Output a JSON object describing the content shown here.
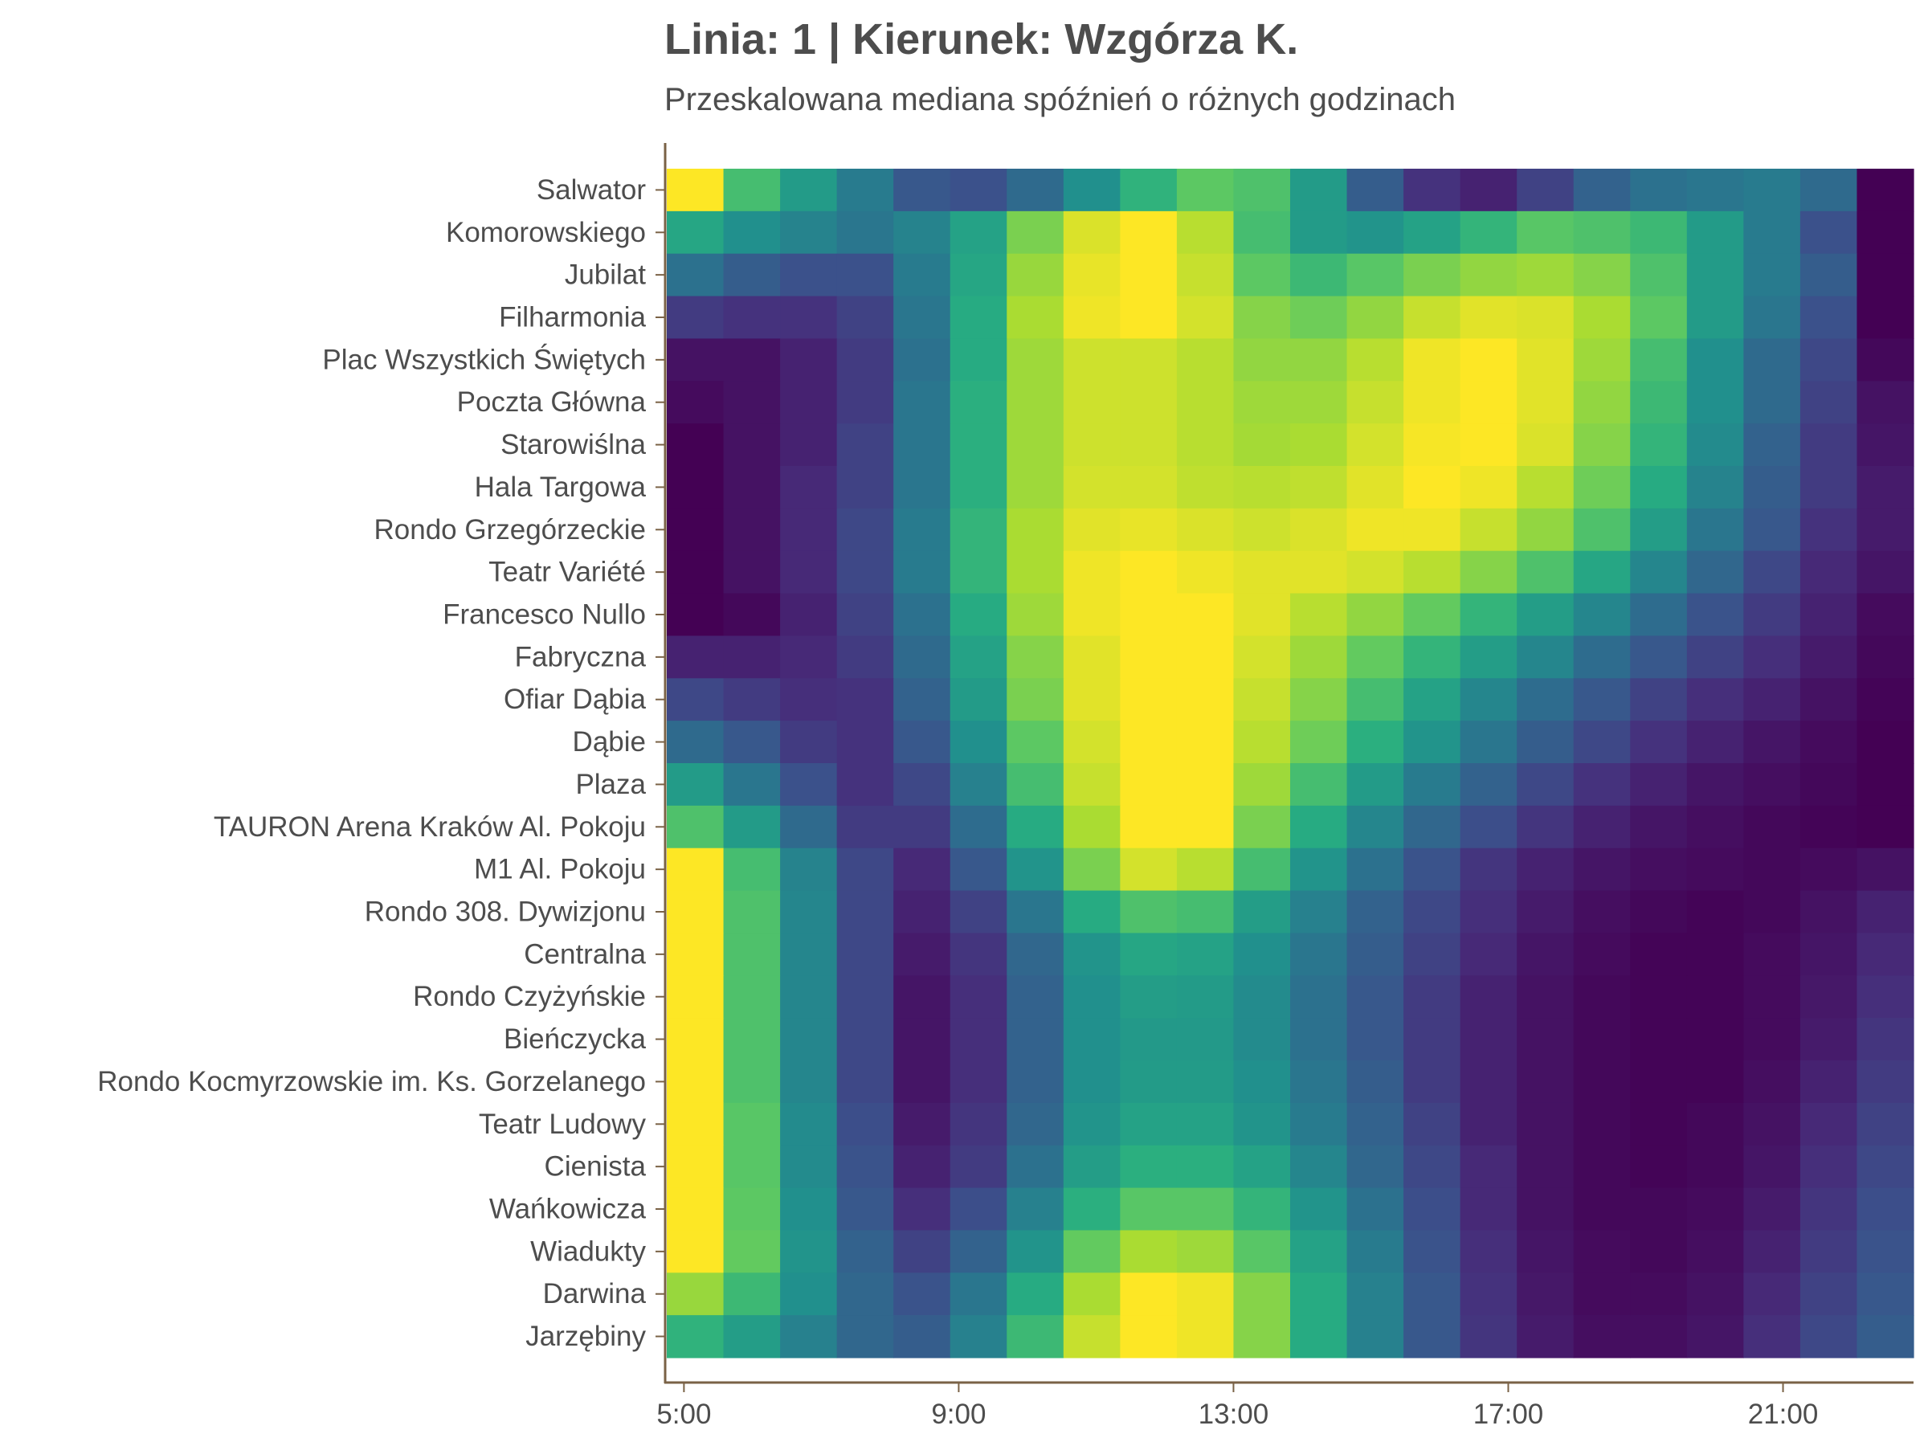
{
  "chart_data": {
    "type": "heatmap",
    "title": "Linia: 1 | Kierunek: Wzgórza K.",
    "subtitle": "Przeskalowana mediana spóźnień o różnych godzinach",
    "xlabel": "",
    "ylabel": "",
    "x_hours": [
      5,
      6,
      7,
      8,
      9,
      10,
      11,
      12,
      13,
      14,
      15,
      16,
      17,
      18,
      19,
      20,
      21,
      22,
      23
    ],
    "x_ticks": [
      "5:00",
      "9:00",
      "13:00",
      "17:00",
      "21:00"
    ],
    "x_tick_hours": [
      5,
      9,
      13,
      17,
      21
    ],
    "x_range_hours": [
      4.75,
      22.9
    ],
    "colorscale": "viridis",
    "value_range": [
      0,
      1
    ],
    "grid": false,
    "stops": [
      "Salwator",
      "Komorowskiego",
      "Jubilat",
      "Filharmonia",
      "Plac Wszystkich Świętych",
      "Poczta Główna",
      "Starowiślna",
      "Hala Targowa",
      "Rondo Grzegórzeckie",
      "Teatr Variété",
      "Francesco Nullo",
      "Fabryczna",
      "Ofiar Dąbia",
      "Dąbie",
      "Plaza",
      "TAURON Arena Kraków Al. Pokoju",
      "M1 Al. Pokoju",
      "Rondo 308. Dywizjonu",
      "Centralna",
      "Rondo Czyżyńskie",
      "Bieńczycka",
      "Rondo Kocmyrzowskie im. Ks. Gorzelanego",
      "Teatr Ludowy",
      "Cienista",
      "Wańkowicza",
      "Wiadukty",
      "Darwina",
      "Jarzębiny"
    ],
    "values": [
      [
        1.0,
        0.7,
        0.55,
        0.42,
        0.28,
        0.25,
        0.35,
        0.5,
        0.65,
        0.75,
        0.72,
        0.55,
        0.3,
        0.15,
        0.1,
        0.2,
        0.32,
        0.38,
        0.4,
        0.42,
        0.35,
        0.0
      ],
      [
        0.6,
        0.5,
        0.45,
        0.4,
        0.45,
        0.58,
        0.8,
        0.95,
        1.0,
        0.9,
        0.7,
        0.55,
        0.52,
        0.58,
        0.66,
        0.74,
        0.72,
        0.68,
        0.55,
        0.42,
        0.25,
        0.0
      ],
      [
        0.38,
        0.3,
        0.25,
        0.25,
        0.42,
        0.6,
        0.85,
        0.97,
        1.0,
        0.92,
        0.75,
        0.68,
        0.74,
        0.8,
        0.84,
        0.86,
        0.82,
        0.72,
        0.55,
        0.42,
        0.3,
        0.0
      ],
      [
        0.18,
        0.15,
        0.15,
        0.2,
        0.4,
        0.62,
        0.88,
        0.98,
        1.0,
        0.94,
        0.82,
        0.78,
        0.84,
        0.92,
        0.96,
        0.95,
        0.88,
        0.75,
        0.55,
        0.4,
        0.25,
        0.0
      ],
      [
        0.05,
        0.05,
        0.1,
        0.18,
        0.38,
        0.62,
        0.86,
        0.93,
        0.93,
        0.9,
        0.84,
        0.84,
        0.9,
        0.98,
        1.0,
        0.96,
        0.86,
        0.7,
        0.5,
        0.35,
        0.22,
        0.02
      ],
      [
        0.03,
        0.05,
        0.1,
        0.18,
        0.4,
        0.64,
        0.86,
        0.93,
        0.93,
        0.9,
        0.86,
        0.86,
        0.92,
        0.98,
        1.0,
        0.96,
        0.84,
        0.68,
        0.5,
        0.35,
        0.2,
        0.05
      ],
      [
        0.0,
        0.05,
        0.1,
        0.2,
        0.4,
        0.64,
        0.86,
        0.93,
        0.93,
        0.9,
        0.87,
        0.88,
        0.94,
        0.99,
        1.0,
        0.95,
        0.82,
        0.66,
        0.48,
        0.32,
        0.18,
        0.06
      ],
      [
        0.0,
        0.05,
        0.12,
        0.2,
        0.4,
        0.64,
        0.86,
        0.94,
        0.94,
        0.91,
        0.9,
        0.91,
        0.96,
        1.0,
        0.98,
        0.9,
        0.78,
        0.62,
        0.45,
        0.3,
        0.18,
        0.08
      ],
      [
        0.0,
        0.05,
        0.12,
        0.22,
        0.42,
        0.66,
        0.88,
        0.96,
        0.97,
        0.95,
        0.93,
        0.95,
        0.98,
        0.98,
        0.92,
        0.84,
        0.72,
        0.56,
        0.4,
        0.28,
        0.15,
        0.08
      ],
      [
        0.0,
        0.05,
        0.12,
        0.22,
        0.42,
        0.66,
        0.88,
        0.98,
        1.0,
        0.98,
        0.96,
        0.96,
        0.94,
        0.9,
        0.82,
        0.72,
        0.6,
        0.46,
        0.34,
        0.22,
        0.12,
        0.06
      ],
      [
        0.0,
        0.02,
        0.1,
        0.2,
        0.38,
        0.62,
        0.86,
        0.98,
        1.0,
        1.0,
        0.96,
        0.9,
        0.84,
        0.76,
        0.66,
        0.56,
        0.46,
        0.36,
        0.26,
        0.18,
        0.1,
        0.03
      ],
      [
        0.1,
        0.1,
        0.12,
        0.18,
        0.35,
        0.58,
        0.82,
        0.96,
        1.0,
        1.0,
        0.94,
        0.86,
        0.76,
        0.66,
        0.56,
        0.46,
        0.36,
        0.28,
        0.2,
        0.14,
        0.08,
        0.02
      ],
      [
        0.22,
        0.18,
        0.14,
        0.15,
        0.32,
        0.55,
        0.8,
        0.96,
        1.0,
        1.0,
        0.92,
        0.82,
        0.7,
        0.58,
        0.46,
        0.36,
        0.28,
        0.2,
        0.14,
        0.1,
        0.05,
        0.01
      ],
      [
        0.35,
        0.28,
        0.18,
        0.15,
        0.28,
        0.5,
        0.75,
        0.94,
        1.0,
        1.0,
        0.9,
        0.78,
        0.64,
        0.52,
        0.4,
        0.3,
        0.22,
        0.15,
        0.1,
        0.06,
        0.03,
        0.0
      ],
      [
        0.55,
        0.4,
        0.25,
        0.15,
        0.22,
        0.44,
        0.7,
        0.92,
        1.0,
        1.0,
        0.86,
        0.7,
        0.55,
        0.42,
        0.32,
        0.22,
        0.15,
        0.1,
        0.06,
        0.04,
        0.02,
        0.0
      ],
      [
        0.72,
        0.55,
        0.35,
        0.18,
        0.18,
        0.36,
        0.62,
        0.88,
        1.0,
        1.0,
        0.8,
        0.62,
        0.46,
        0.34,
        0.24,
        0.16,
        0.1,
        0.06,
        0.04,
        0.02,
        0.01,
        0.0
      ],
      [
        1.0,
        0.7,
        0.45,
        0.22,
        0.12,
        0.28,
        0.52,
        0.8,
        0.94,
        0.9,
        0.7,
        0.52,
        0.38,
        0.26,
        0.16,
        0.1,
        0.06,
        0.04,
        0.03,
        0.02,
        0.03,
        0.05
      ],
      [
        1.0,
        0.72,
        0.46,
        0.22,
        0.1,
        0.2,
        0.4,
        0.62,
        0.72,
        0.7,
        0.56,
        0.44,
        0.32,
        0.22,
        0.14,
        0.08,
        0.04,
        0.02,
        0.01,
        0.02,
        0.05,
        0.1
      ],
      [
        1.0,
        0.72,
        0.46,
        0.22,
        0.08,
        0.16,
        0.34,
        0.52,
        0.6,
        0.58,
        0.5,
        0.4,
        0.3,
        0.2,
        0.12,
        0.06,
        0.03,
        0.01,
        0.01,
        0.03,
        0.06,
        0.12
      ],
      [
        1.0,
        0.72,
        0.46,
        0.22,
        0.06,
        0.14,
        0.32,
        0.5,
        0.56,
        0.55,
        0.48,
        0.38,
        0.28,
        0.18,
        0.1,
        0.05,
        0.02,
        0.01,
        0.01,
        0.03,
        0.07,
        0.14
      ],
      [
        1.0,
        0.72,
        0.46,
        0.22,
        0.06,
        0.14,
        0.32,
        0.5,
        0.54,
        0.54,
        0.48,
        0.38,
        0.28,
        0.18,
        0.1,
        0.05,
        0.02,
        0.01,
        0.01,
        0.03,
        0.08,
        0.16
      ],
      [
        1.0,
        0.72,
        0.46,
        0.22,
        0.06,
        0.14,
        0.32,
        0.5,
        0.55,
        0.55,
        0.5,
        0.4,
        0.3,
        0.18,
        0.1,
        0.05,
        0.02,
        0.01,
        0.01,
        0.04,
        0.1,
        0.18
      ],
      [
        1.0,
        0.74,
        0.48,
        0.24,
        0.08,
        0.16,
        0.34,
        0.52,
        0.58,
        0.58,
        0.52,
        0.42,
        0.32,
        0.2,
        0.1,
        0.05,
        0.02,
        0.01,
        0.02,
        0.05,
        0.12,
        0.2
      ],
      [
        1.0,
        0.74,
        0.48,
        0.26,
        0.1,
        0.18,
        0.38,
        0.56,
        0.64,
        0.64,
        0.58,
        0.46,
        0.34,
        0.22,
        0.12,
        0.05,
        0.02,
        0.01,
        0.02,
        0.06,
        0.14,
        0.22
      ],
      [
        1.0,
        0.75,
        0.5,
        0.28,
        0.14,
        0.24,
        0.44,
        0.64,
        0.74,
        0.74,
        0.66,
        0.52,
        0.38,
        0.24,
        0.12,
        0.05,
        0.02,
        0.02,
        0.03,
        0.08,
        0.16,
        0.24
      ],
      [
        1.0,
        0.76,
        0.52,
        0.32,
        0.2,
        0.32,
        0.52,
        0.76,
        0.88,
        0.86,
        0.74,
        0.58,
        0.42,
        0.26,
        0.14,
        0.06,
        0.03,
        0.02,
        0.04,
        0.1,
        0.18,
        0.26
      ],
      [
        0.85,
        0.68,
        0.5,
        0.34,
        0.26,
        0.4,
        0.62,
        0.88,
        1.0,
        0.98,
        0.82,
        0.62,
        0.44,
        0.28,
        0.15,
        0.07,
        0.03,
        0.03,
        0.05,
        0.12,
        0.2,
        0.28
      ],
      [
        0.65,
        0.56,
        0.44,
        0.34,
        0.3,
        0.44,
        0.68,
        0.92,
        1.0,
        0.98,
        0.82,
        0.62,
        0.44,
        0.28,
        0.16,
        0.08,
        0.04,
        0.04,
        0.06,
        0.14,
        0.22,
        0.3
      ]
    ]
  }
}
